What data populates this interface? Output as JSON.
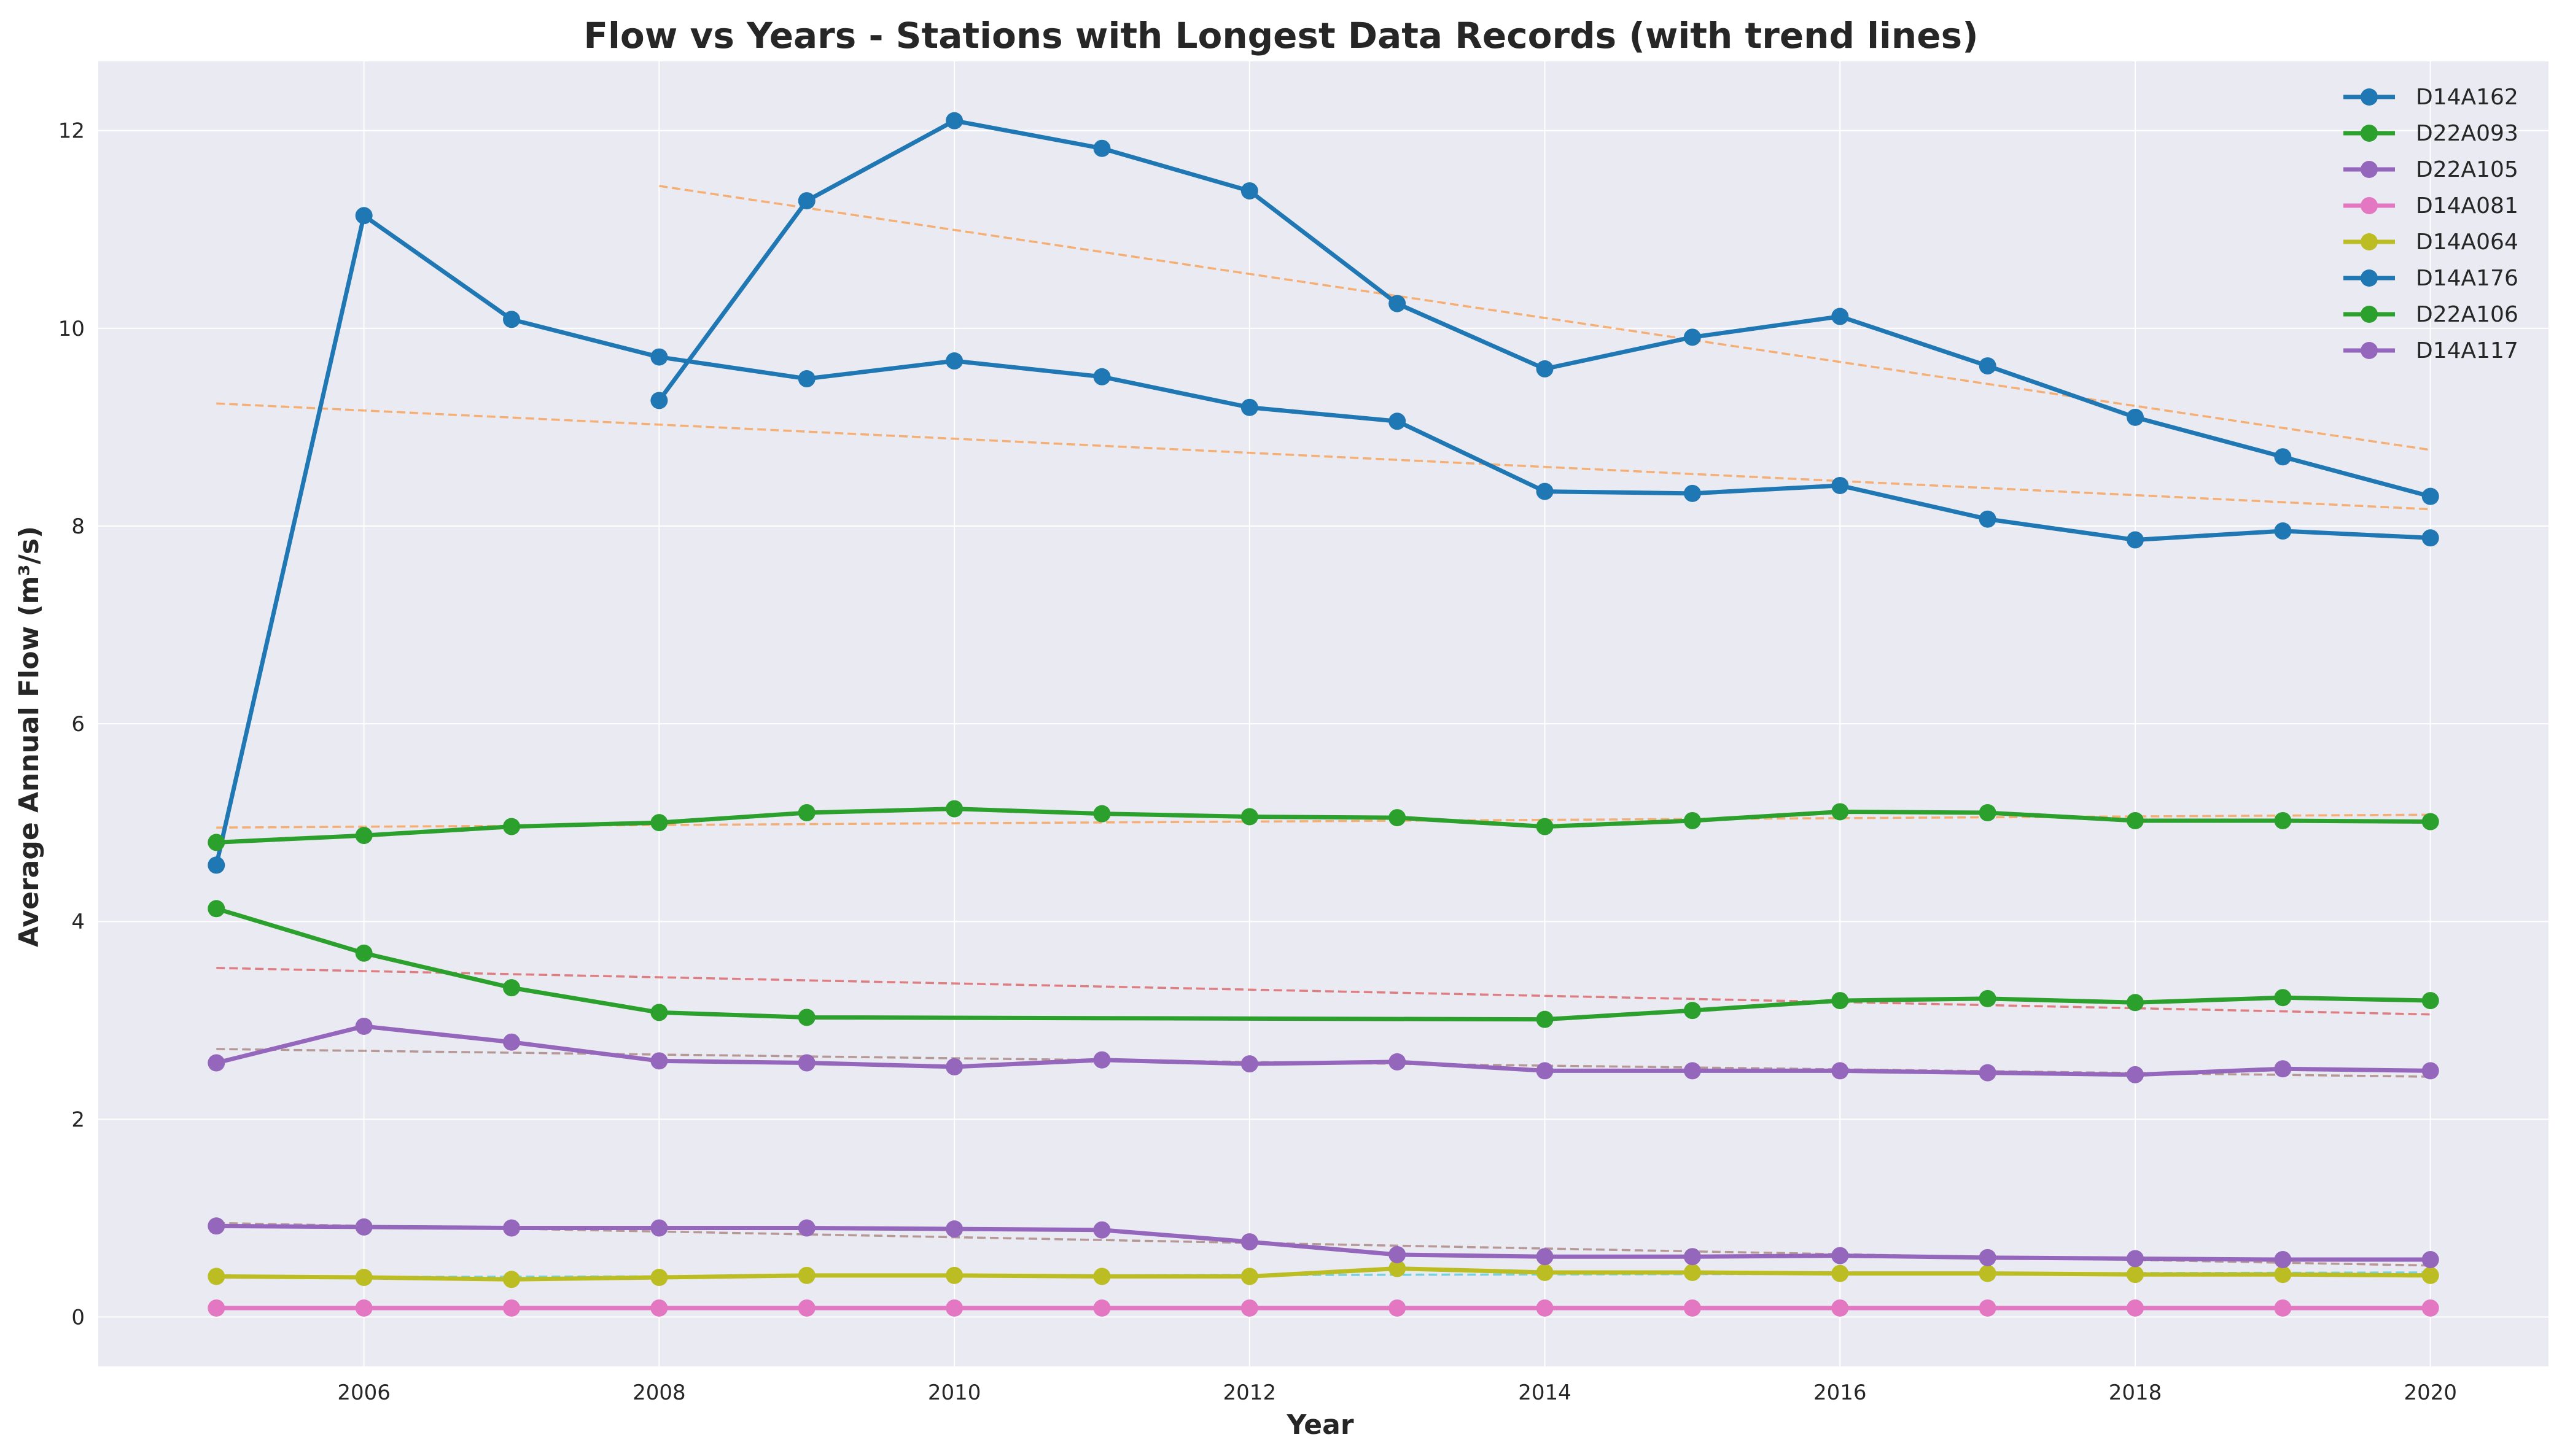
{
  "chart_data": {
    "type": "line",
    "title": "Flow vs Years - Stations with Longest Data Records (with trend lines)",
    "xlabel": "Year",
    "ylabel": "Average Annual Flow (m³/s)",
    "xlim": [
      2004.2,
      2020.8
    ],
    "ylim": [
      -0.5,
      12.7
    ],
    "xticks": [
      2006,
      2008,
      2010,
      2012,
      2014,
      2016,
      2018,
      2020
    ],
    "yticks": [
      0,
      2,
      4,
      6,
      8,
      10,
      12
    ],
    "grid": true,
    "legend_position": "top-right",
    "series": [
      {
        "name": "D14A162",
        "color": "#1f77b4",
        "x": [
          2005,
          2006,
          2007,
          2008,
          2009,
          2010,
          2011,
          2012,
          2013,
          2014,
          2015,
          2016,
          2017,
          2018,
          2019,
          2020
        ],
        "y": [
          4.57,
          11.14,
          10.09,
          9.71,
          9.49,
          9.67,
          9.51,
          9.2,
          9.06,
          8.35,
          8.33,
          8.41,
          8.07,
          7.86,
          7.95,
          7.88
        ],
        "trend": {
          "x": [
            2005,
            2020
          ],
          "y": [
            9.24,
            8.17
          ],
          "color": "#ff7f0e"
        }
      },
      {
        "name": "D22A093",
        "color": "#2ca02c",
        "x": [
          2005,
          2006,
          2007,
          2008,
          2009,
          2010,
          2011,
          2012,
          2013,
          2014,
          2015,
          2016,
          2017,
          2018,
          2019,
          2020
        ],
        "y": [
          4.8,
          4.87,
          4.96,
          5.0,
          5.1,
          5.14,
          5.09,
          5.06,
          5.05,
          4.96,
          5.02,
          5.11,
          5.1,
          5.02,
          5.02,
          5.01
        ],
        "trend": {
          "x": [
            2005,
            2020
          ],
          "y": [
            4.95,
            5.08
          ],
          "color": "#ff7f0e"
        }
      },
      {
        "name": "D22A105",
        "color": "#9467bd",
        "x": [
          2005,
          2006,
          2007,
          2008,
          2009,
          2010,
          2011,
          2012,
          2013,
          2014,
          2015,
          2016,
          2017,
          2018,
          2019,
          2020
        ],
        "y": [
          2.57,
          2.94,
          2.78,
          2.59,
          2.57,
          2.53,
          2.6,
          2.56,
          2.58,
          2.49,
          2.49,
          2.49,
          2.47,
          2.45,
          2.51,
          2.49
        ],
        "trend": {
          "x": [
            2005,
            2020
          ],
          "y": [
            2.71,
            2.43
          ],
          "color": "#8c564b"
        }
      },
      {
        "name": "D14A081",
        "color": "#e377c2",
        "x": [
          2005,
          2006,
          2007,
          2008,
          2009,
          2010,
          2011,
          2012,
          2013,
          2014,
          2015,
          2016,
          2017,
          2018,
          2019,
          2020
        ],
        "y": [
          0.09,
          0.09,
          0.09,
          0.09,
          0.09,
          0.09,
          0.09,
          0.09,
          0.09,
          0.09,
          0.09,
          0.09,
          0.09,
          0.09,
          0.09,
          0.09
        ],
        "trend": {
          "x": [
            2005,
            2020
          ],
          "y": [
            0.09,
            0.09
          ],
          "color": "#7f7f7f"
        }
      },
      {
        "name": "D14A064",
        "color": "#bcbd22",
        "x": [
          2005,
          2006,
          2007,
          2008,
          2009,
          2010,
          2011,
          2012,
          2013,
          2014,
          2015,
          2016,
          2017,
          2018,
          2019,
          2020
        ],
        "y": [
          0.41,
          0.4,
          0.38,
          0.4,
          0.42,
          0.42,
          0.41,
          0.41,
          0.49,
          0.45,
          0.45,
          0.44,
          0.44,
          0.43,
          0.43,
          0.42
        ],
        "trend": {
          "x": [
            2005,
            2020
          ],
          "y": [
            0.4,
            0.45
          ],
          "color": "#17becf"
        }
      },
      {
        "name": "D14A176",
        "color": "#1f77b4",
        "x": [
          2008,
          2009,
          2010,
          2011,
          2012,
          2013,
          2014,
          2015,
          2016,
          2017,
          2018,
          2019,
          2020
        ],
        "y": [
          9.27,
          11.29,
          12.1,
          11.82,
          11.39,
          10.25,
          9.59,
          9.91,
          10.12,
          9.62,
          9.1,
          8.7,
          8.3
        ],
        "trend": {
          "x": [
            2008,
            2020
          ],
          "y": [
            11.44,
            8.77
          ],
          "color": "#ff7f0e"
        }
      },
      {
        "name": "D22A106",
        "color": "#2ca02c",
        "x": [
          2005,
          2006,
          2007,
          2008,
          2009,
          2014,
          2015,
          2016,
          2017,
          2018,
          2019,
          2020
        ],
        "y": [
          4.13,
          3.68,
          3.33,
          3.08,
          3.03,
          3.01,
          3.1,
          3.2,
          3.22,
          3.18,
          3.23,
          3.2
        ],
        "trend": {
          "x": [
            2005,
            2020
          ],
          "y": [
            3.53,
            3.06
          ],
          "color": "#d62728"
        }
      },
      {
        "name": "D14A117",
        "color": "#9467bd",
        "x": [
          2005,
          2006,
          2007,
          2008,
          2009,
          2010,
          2011,
          2012,
          2013,
          2014,
          2015,
          2016,
          2017,
          2018,
          2019,
          2020
        ],
        "y": [
          0.92,
          0.91,
          0.9,
          0.9,
          0.9,
          0.89,
          0.88,
          0.76,
          0.63,
          0.61,
          0.61,
          0.62,
          0.6,
          0.59,
          0.58,
          0.58
        ],
        "trend": {
          "x": [
            2005,
            2020
          ],
          "y": [
            0.95,
            0.52
          ],
          "color": "#8c564b"
        }
      }
    ]
  }
}
